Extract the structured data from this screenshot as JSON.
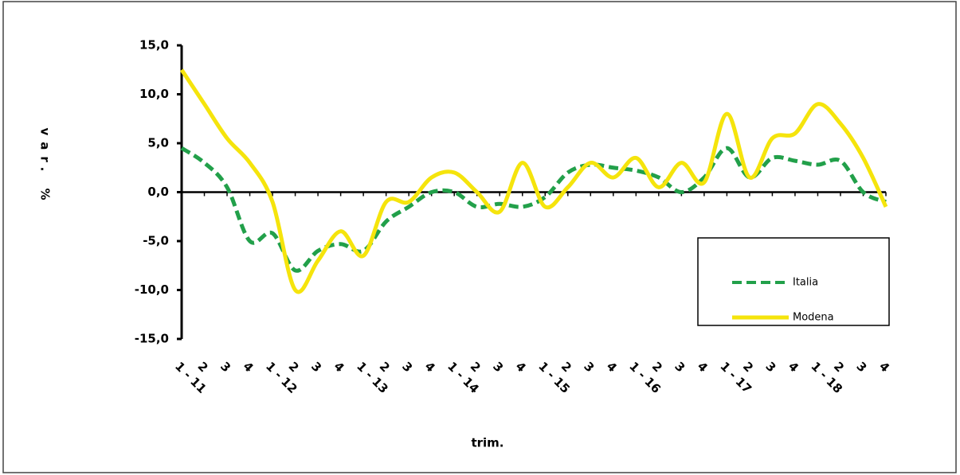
{
  "chart_data": {
    "type": "line",
    "x_label": "trim.",
    "y_label": "var. %",
    "categories": [
      "1 - 11",
      "2",
      "3",
      "4",
      "1 - 12",
      "2",
      "3",
      "4",
      "1 - 13",
      "2",
      "3",
      "4",
      "1 - 14",
      "2",
      "3",
      "4",
      "1 - 15",
      "2",
      "3",
      "4",
      "1 - 16",
      "2",
      "3",
      "4",
      "1 - 17",
      "2",
      "3",
      "4",
      "1 - 18",
      "2",
      "3",
      "4"
    ],
    "series": [
      {
        "name": "Italia",
        "color": "#22a04a",
        "dashed": true,
        "values": [
          4.5,
          3,
          0.5,
          -5,
          -4.2,
          -8,
          -6,
          -5.3,
          -6,
          -3,
          -1.5,
          0,
          0,
          -1.5,
          -1.2,
          -1.5,
          -0.5,
          2,
          2.8,
          2.5,
          2.2,
          1.5,
          0,
          1.5,
          4.5,
          1.5,
          3.5,
          3.2,
          2.8,
          3.2,
          0,
          -1
        ]
      },
      {
        "name": "Modena",
        "color": "#f5e40c",
        "dashed": false,
        "values": [
          12.5,
          9,
          5.5,
          3,
          -1,
          -10,
          -7,
          -4,
          -6.5,
          -1,
          -1,
          1.5,
          2,
          0,
          -2,
          3,
          -1.5,
          0.5,
          3,
          1.5,
          3.5,
          0.5,
          3,
          1,
          8,
          1.5,
          5.5,
          6,
          9,
          7,
          3.5,
          -1.5
        ]
      }
    ],
    "ylim": [
      -15,
      15
    ],
    "yticks": [
      {
        "value": -15,
        "label": "-15,0"
      },
      {
        "value": -10,
        "label": "-10,0"
      },
      {
        "value": -5,
        "label": "-5,0"
      },
      {
        "value": 0,
        "label": "0,0"
      },
      {
        "value": 5,
        "label": "5,0"
      },
      {
        "value": 10,
        "label": "10,0"
      },
      {
        "value": 15,
        "label": "15,0"
      }
    ],
    "legend": "right"
  }
}
